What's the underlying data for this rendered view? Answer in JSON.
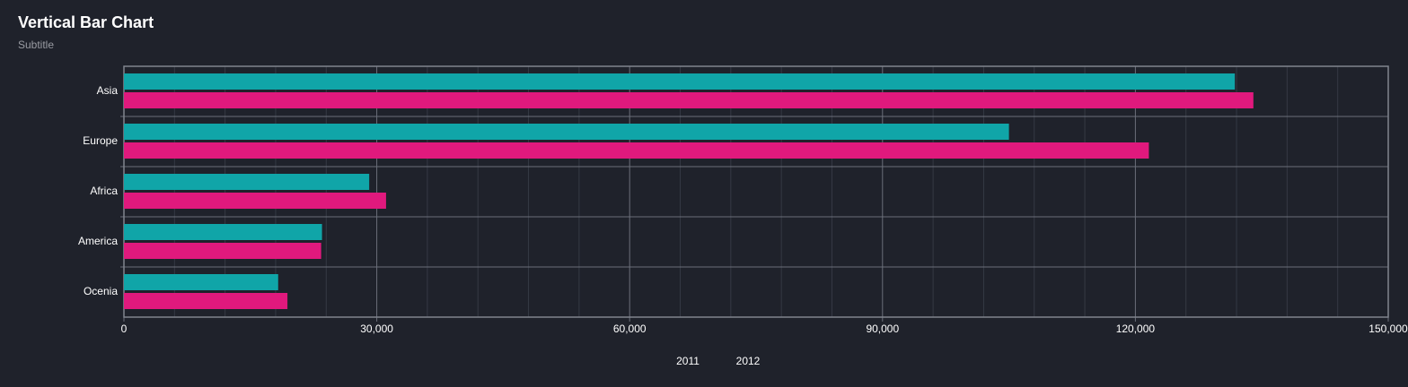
{
  "chart_data": {
    "type": "hbar",
    "title": "Vertical Bar Chart",
    "subtitle": "Subtitle",
    "categories": [
      "Asia",
      "Europe",
      "Africa",
      "America",
      "Ocenia"
    ],
    "series": [
      {
        "name": "2011",
        "color": "#10a5a8",
        "values": [
          131800,
          105000,
          29100,
          23500,
          18300
        ]
      },
      {
        "name": "2012",
        "color": "#e0197d",
        "values": [
          134000,
          121600,
          31100,
          23400,
          19400
        ]
      }
    ],
    "xlim": [
      0,
      150000
    ],
    "xticks": [
      0,
      {
        "value": 30000,
        "label": "30,000"
      },
      {
        "value": 60000,
        "label": "60,000"
      },
      {
        "value": 90000,
        "label": "90,000"
      },
      {
        "value": 120000,
        "label": "120,000"
      },
      {
        "value": 150000,
        "label": "150,000"
      }
    ],
    "grid": true
  }
}
